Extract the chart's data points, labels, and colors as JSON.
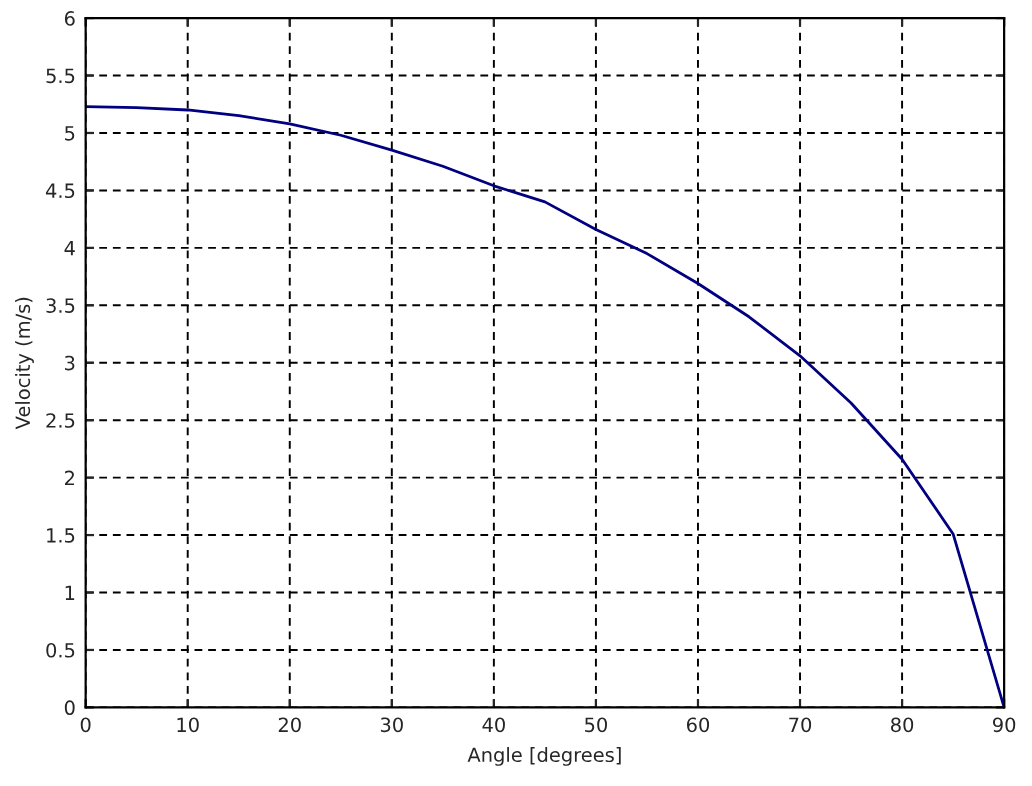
{
  "chart_data": {
    "type": "line",
    "xlabel": "Angle [degrees]",
    "ylabel": "Velocity (m/s)",
    "x": [
      0,
      5,
      10,
      15,
      20,
      25,
      30,
      35,
      40,
      45,
      50,
      55,
      60,
      65,
      70,
      75,
      80,
      85,
      90
    ],
    "series": [
      {
        "color": "#000080",
        "values": [
          5.23,
          5.22,
          5.2,
          5.15,
          5.08,
          4.98,
          4.85,
          4.71,
          4.54,
          4.4,
          4.16,
          3.95,
          3.69,
          3.4,
          3.06,
          2.65,
          2.16,
          1.51,
          0
        ]
      }
    ],
    "xlim": [
      0,
      90
    ],
    "xticks": [
      0,
      10,
      20,
      30,
      40,
      50,
      60,
      70,
      80,
      90
    ],
    "ylim": [
      0,
      6
    ],
    "yticks": [
      0,
      0.5,
      1,
      1.5,
      2,
      2.5,
      3,
      3.5,
      4,
      4.5,
      5,
      5.5,
      6
    ],
    "grid": true,
    "line_style": "solid",
    "marker": "none"
  }
}
